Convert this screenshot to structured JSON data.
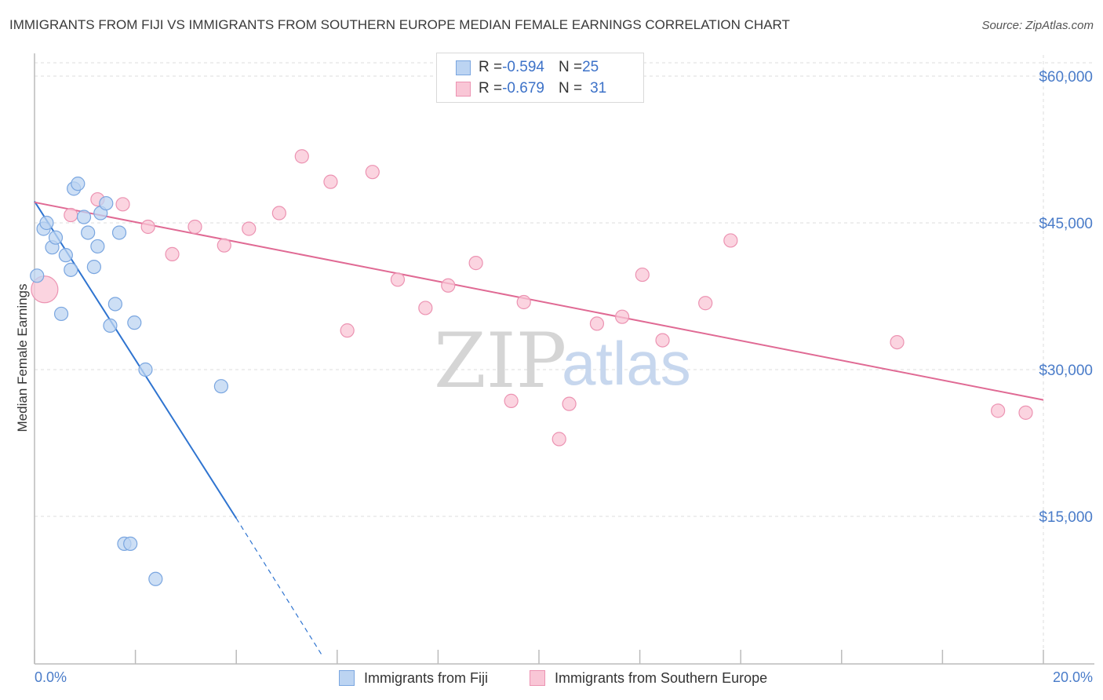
{
  "header": {
    "title": "IMMIGRANTS FROM FIJI VS IMMIGRANTS FROM SOUTHERN EUROPE MEDIAN FEMALE EARNINGS CORRELATION CHART",
    "source": "Source: ZipAtlas.com"
  },
  "legend_top": {
    "rows": [
      {
        "r_label": "R = ",
        "r_value": "-0.594",
        "n_label": "N = ",
        "n_value": "25"
      },
      {
        "r_label": "R = ",
        "r_value": "-0.679",
        "n_label": "N = ",
        "n_value": "31"
      }
    ]
  },
  "legend_bottom": {
    "fiji": "Immigrants from Fiji",
    "seurope": "Immigrants from Southern Europe"
  },
  "watermark": {
    "zip": "ZIP",
    "atlas": "atlas"
  },
  "colors": {
    "fiji_fill": "#bcd4f2",
    "fiji_stroke": "#7aa6e0",
    "fiji_line": "#2f74d0",
    "seurope_fill": "#f9c6d6",
    "seurope_stroke": "#ec93b2",
    "seurope_line": "#e06a94",
    "tick_text": "#4a7cc9",
    "grid": "#dcdcdc"
  },
  "chart_data": {
    "type": "scatter",
    "title": "IMMIGRANTS FROM FIJI VS IMMIGRANTS FROM SOUTHERN EUROPE MEDIAN FEMALE EARNINGS CORRELATION CHART",
    "xlabel": "",
    "ylabel": "Median Female Earnings",
    "xlim": [
      0,
      20
    ],
    "ylim": [
      0,
      61500
    ],
    "x_tick_labels": [
      "0.0%",
      "20.0%"
    ],
    "y_ticks": [
      {
        "value": 15000,
        "label": "$15,000"
      },
      {
        "value": 30000,
        "label": "$30,000"
      },
      {
        "value": 45000,
        "label": "$45,000"
      },
      {
        "value": 60000,
        "label": "$60,000"
      }
    ],
    "grid": "horizontal dashed",
    "series": [
      {
        "name": "Immigrants from Fiji",
        "r": -0.594,
        "n": 25,
        "points": [
          [
            0.05,
            39600
          ],
          [
            0.18,
            44400
          ],
          [
            0.24,
            45000
          ],
          [
            0.35,
            42500
          ],
          [
            0.42,
            43500
          ],
          [
            0.53,
            35700
          ],
          [
            0.62,
            41700
          ],
          [
            0.72,
            40200
          ],
          [
            0.78,
            48500
          ],
          [
            0.86,
            49000
          ],
          [
            0.98,
            45600
          ],
          [
            1.06,
            44000
          ],
          [
            1.18,
            40500
          ],
          [
            1.25,
            42600
          ],
          [
            1.31,
            46000
          ],
          [
            1.42,
            47000
          ],
          [
            1.5,
            34500
          ],
          [
            1.6,
            36700
          ],
          [
            1.68,
            44000
          ],
          [
            1.78,
            12200
          ],
          [
            1.9,
            12200
          ],
          [
            1.98,
            34800
          ],
          [
            2.2,
            30000
          ],
          [
            2.4,
            8600
          ],
          [
            3.7,
            28300
          ]
        ],
        "trend": {
          "x0": 0.0,
          "y0": 47200,
          "x1": 4.0,
          "y1": 14800,
          "dashed_to": {
            "x": 5.7,
            "y": 800
          }
        }
      },
      {
        "name": "Immigrants from Southern Europe",
        "r": -0.679,
        "n": 31,
        "points": [
          [
            0.2,
            38200
          ],
          [
            0.72,
            45800
          ],
          [
            1.25,
            47400
          ],
          [
            1.75,
            46900
          ],
          [
            2.25,
            44600
          ],
          [
            2.73,
            41800
          ],
          [
            3.18,
            44600
          ],
          [
            3.76,
            42700
          ],
          [
            4.25,
            44400
          ],
          [
            4.85,
            46000
          ],
          [
            5.3,
            51800
          ],
          [
            5.87,
            49200
          ],
          [
            6.2,
            34000
          ],
          [
            6.7,
            50200
          ],
          [
            7.2,
            39200
          ],
          [
            7.75,
            36300
          ],
          [
            8.2,
            38600
          ],
          [
            8.75,
            40900
          ],
          [
            9.45,
            26800
          ],
          [
            9.7,
            36900
          ],
          [
            10.4,
            22900
          ],
          [
            10.6,
            26500
          ],
          [
            11.15,
            34700
          ],
          [
            11.65,
            35400
          ],
          [
            12.05,
            39700
          ],
          [
            12.45,
            33000
          ],
          [
            13.3,
            36800
          ],
          [
            13.8,
            43200
          ],
          [
            17.1,
            32800
          ],
          [
            19.1,
            25800
          ],
          [
            19.65,
            25600
          ]
        ],
        "trend": {
          "x0": 0.0,
          "y0": 47100,
          "x1": 20.0,
          "y1": 26900
        }
      }
    ]
  }
}
